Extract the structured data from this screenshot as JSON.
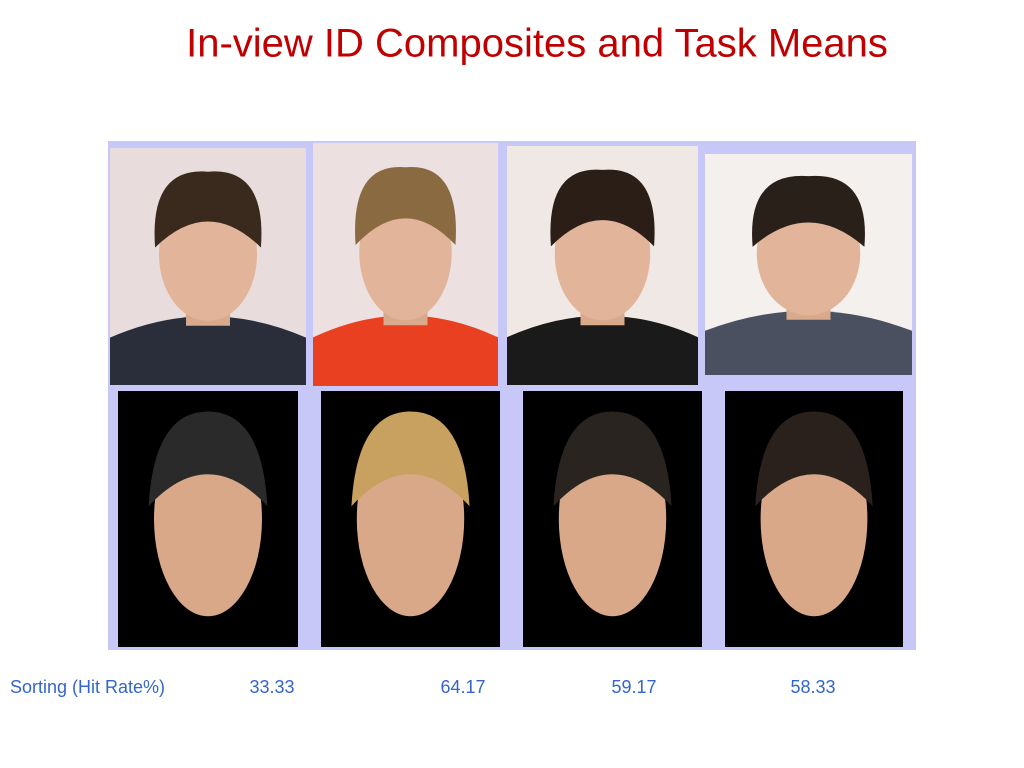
{
  "title": "In-view ID Composites and Task Means",
  "scores": {
    "label": "Sorting (Hit Rate%)",
    "values": [
      33.33,
      64.17,
      59.17,
      58.33
    ]
  }
}
